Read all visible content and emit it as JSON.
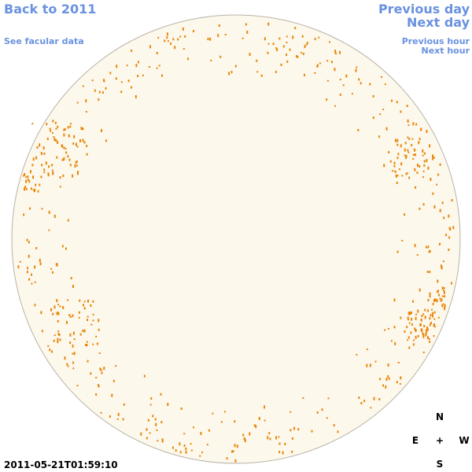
{
  "links": {
    "back": "Back to 2011",
    "facular": "See facular data",
    "previous_day": "Previous day",
    "next_day": "Next day",
    "previous_hour": "Previous hour",
    "next_hour": "Next hour"
  },
  "timestamp": "2011-05-21T01:59:10",
  "compass": {
    "north": "N",
    "east": "E",
    "center": "+",
    "west": "W",
    "south": "S"
  }
}
